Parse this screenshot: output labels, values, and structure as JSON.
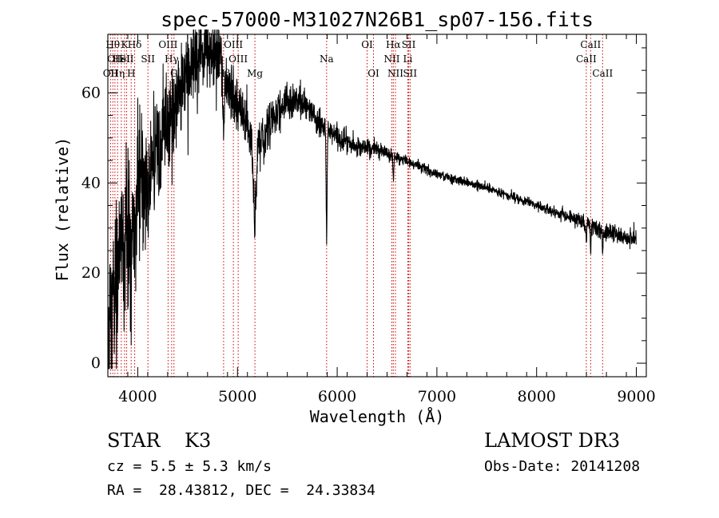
{
  "chart_data": {
    "type": "line",
    "title": "spec-57000-M31027N26B1_sp07-156.fits",
    "xlabel": "Wavelength (Å)",
    "ylabel": "Flux (relative)",
    "xlim": [
      3700,
      9100
    ],
    "ylim": [
      -3,
      73
    ],
    "xticks": [
      4000,
      5000,
      6000,
      7000,
      8000,
      9000
    ],
    "yticks": [
      0,
      20,
      40,
      60
    ],
    "line_color": "#000000",
    "marker_color": "#cc0000",
    "lines": [
      {
        "wavelength": 3727,
        "label": "OII",
        "row": 2
      },
      {
        "wavelength": 3750,
        "label": "Hθ",
        "row": 0
      },
      {
        "wavelength": 3771,
        "label": "OII",
        "row": 1
      },
      {
        "wavelength": 3798,
        "label": "Hη",
        "row": 2
      },
      {
        "wavelength": 3835,
        "label": "HeI",
        "row": 1
      },
      {
        "wavelength": 3868,
        "label": "K",
        "row": 0
      },
      {
        "wavelength": 3889,
        "label": "SII",
        "row": 1
      },
      {
        "wavelength": 3934,
        "label": "H",
        "row": 2
      },
      {
        "wavelength": 3969,
        "label": "Hδ",
        "row": 0
      },
      {
        "wavelength": 4102,
        "label": "SII",
        "row": 1
      },
      {
        "wavelength": 4304,
        "label": "OIII",
        "row": 0
      },
      {
        "wavelength": 4340,
        "label": "Hγ",
        "row": 1
      },
      {
        "wavelength": 4363,
        "label": "G",
        "row": 2
      },
      {
        "wavelength": 4861,
        "label": "Hβ",
        "row": 2
      },
      {
        "wavelength": 4959,
        "label": "OIII",
        "row": 0
      },
      {
        "wavelength": 5007,
        "label": "OIII",
        "row": 1
      },
      {
        "wavelength": 5175,
        "label": "Mg",
        "row": 2
      },
      {
        "wavelength": 5894,
        "label": "Na",
        "row": 1
      },
      {
        "wavelength": 6300,
        "label": "OI",
        "row": 0
      },
      {
        "wavelength": 6364,
        "label": "OI",
        "row": 2
      },
      {
        "wavelength": 6548,
        "label": "NII",
        "row": 1
      },
      {
        "wavelength": 6563,
        "label": "Hα",
        "row": 0
      },
      {
        "wavelength": 6584,
        "label": "NII",
        "row": 2
      },
      {
        "wavelength": 6708,
        "label": "Li",
        "row": 1
      },
      {
        "wavelength": 6717,
        "label": "SII",
        "row": 0
      },
      {
        "wavelength": 6731,
        "label": "SII",
        "row": 2
      },
      {
        "wavelength": 8498,
        "label": "CaII",
        "row": 1
      },
      {
        "wavelength": 8542,
        "label": "CaII",
        "row": 0
      },
      {
        "wavelength": 8662,
        "label": "CaII",
        "row": 2
      }
    ],
    "spectrum": {
      "wavelength_start": 3700,
      "wavelength_step": 2,
      "length": 2650,
      "continuum_knots": [
        [
          3700,
          12
        ],
        [
          3800,
          20
        ],
        [
          3900,
          28
        ],
        [
          4000,
          38
        ],
        [
          4100,
          44
        ],
        [
          4200,
          49
        ],
        [
          4300,
          53
        ],
        [
          4400,
          58
        ],
        [
          4500,
          64
        ],
        [
          4600,
          68
        ],
        [
          4700,
          70
        ],
        [
          4800,
          67
        ],
        [
          4900,
          62
        ],
        [
          5000,
          58
        ],
        [
          5100,
          52
        ],
        [
          5200,
          48
        ],
        [
          5300,
          53
        ],
        [
          5400,
          56
        ],
        [
          5500,
          58
        ],
        [
          5600,
          58
        ],
        [
          5700,
          57
        ],
        [
          5800,
          54
        ],
        [
          5900,
          52
        ],
        [
          6000,
          50
        ],
        [
          6200,
          48
        ],
        [
          6400,
          47.5
        ],
        [
          6600,
          45.5
        ],
        [
          6800,
          44
        ],
        [
          7000,
          42
        ],
        [
          7500,
          39
        ],
        [
          8000,
          35
        ],
        [
          8500,
          31
        ],
        [
          8800,
          28.5
        ],
        [
          9000,
          27.5
        ],
        [
          9010,
          25
        ]
      ],
      "noise_knots": [
        [
          3700,
          12
        ],
        [
          3900,
          10
        ],
        [
          4000,
          8
        ],
        [
          4200,
          6
        ],
        [
          4500,
          4.5
        ],
        [
          4800,
          3.5
        ],
        [
          5000,
          3
        ],
        [
          5400,
          2.4
        ],
        [
          6000,
          1.2
        ],
        [
          6500,
          0.7
        ],
        [
          7000,
          0.5
        ],
        [
          8000,
          0.5
        ],
        [
          8500,
          0.9
        ],
        [
          9000,
          1.1
        ]
      ],
      "absorption": [
        [
          3934,
          10,
          8
        ],
        [
          3969,
          10,
          8
        ],
        [
          4102,
          8,
          10
        ],
        [
          4227,
          6,
          8
        ],
        [
          4861,
          12,
          8
        ],
        [
          5175,
          18,
          14
        ],
        [
          5270,
          5,
          5
        ],
        [
          5894,
          24,
          5
        ],
        [
          6563,
          5,
          4
        ],
        [
          8498,
          4,
          4
        ],
        [
          8542,
          6,
          4
        ],
        [
          8662,
          6,
          4
        ]
      ]
    },
    "info": {
      "left_line1": "STAR    K3",
      "left_line2": "cz = 5.5 ± 5.3 km/s",
      "left_line3": "RA =  28.43812, DEC =  24.33834",
      "right_line1": "LAMOST DR3",
      "right_line2": "Obs-Date: 20141208"
    }
  }
}
